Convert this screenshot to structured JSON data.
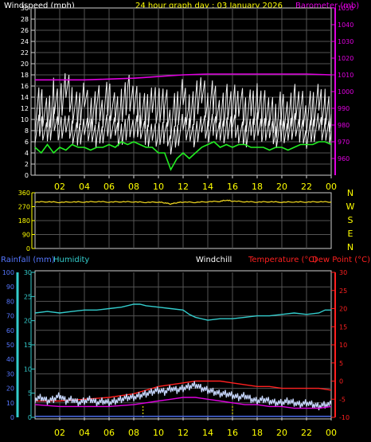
{
  "colors": {
    "background": "#000000",
    "frame": "#cfcfcf",
    "grid": "#555555",
    "white_text": "#ffffff",
    "yellow": "#ffff00",
    "magenta": "#e000e0",
    "green": "#22ee22",
    "cyan": "#33cccc",
    "blue_rain": "#5577ff",
    "red": "#ff2020",
    "light_blue": "#c8d8ff",
    "wind_white": "#f0f0f0",
    "dir_yellow": "#e8d020"
  },
  "chart_data": [
    {
      "type": "line",
      "name_id": "wind-baro",
      "title": "24 hour graph day : 03 January 2026",
      "ylabel_left": "Windspeed (mph)",
      "ylabel_right": "Barometer (mb)",
      "x_tick_labels": [
        "02",
        "04",
        "06",
        "08",
        "10",
        "12",
        "14",
        "16",
        "18",
        "20",
        "22",
        "00"
      ],
      "x_range_hours": [
        0,
        24
      ],
      "y_left_range": [
        0,
        30
      ],
      "y_left_ticks": [
        0,
        2,
        4,
        6,
        8,
        10,
        12,
        14,
        16,
        18,
        20,
        22,
        24,
        26,
        28,
        30
      ],
      "y_right_range": [
        950,
        1050
      ],
      "y_right_ticks": [
        960,
        970,
        980,
        990,
        1000,
        1010,
        1020,
        1030,
        1040,
        1050
      ],
      "grid": true,
      "series": [
        {
          "role": "gust",
          "color": "#f0f0f0",
          "x": [
            0,
            0.5,
            1,
            1.5,
            2,
            2.5,
            3,
            3.5,
            4,
            4.5,
            5,
            5.5,
            6,
            6.5,
            7,
            7.5,
            8,
            8.5,
            9,
            9.5,
            10,
            10.5,
            11,
            11.5,
            12,
            12.5,
            13,
            13.5,
            14,
            14.5,
            15,
            15.5,
            16,
            16.5,
            17,
            17.5,
            18,
            18.5,
            19,
            19.5,
            20,
            20.5,
            21,
            21.5,
            22,
            22.5,
            23,
            23.5,
            24
          ],
          "values": [
            11,
            13,
            10,
            14,
            12,
            16,
            13,
            11,
            15,
            10,
            13,
            12,
            14,
            11,
            12,
            15,
            13,
            12,
            11,
            14,
            12,
            13,
            10,
            12,
            14,
            11,
            13,
            15,
            12,
            14,
            11,
            13,
            12,
            14,
            11,
            12,
            13,
            12,
            11,
            10,
            12,
            11,
            13,
            12,
            11,
            12,
            13,
            12,
            11
          ]
        },
        {
          "role": "average",
          "color": "#f0f0f0",
          "x": [
            0,
            0.5,
            1,
            1.5,
            2,
            2.5,
            3,
            3.5,
            4,
            4.5,
            5,
            5.5,
            6,
            6.5,
            7,
            7.5,
            8,
            8.5,
            9,
            9.5,
            10,
            10.5,
            11,
            11.5,
            12,
            12.5,
            13,
            13.5,
            14,
            14.5,
            15,
            15.5,
            16,
            16.5,
            17,
            17.5,
            18,
            18.5,
            19,
            19.5,
            20,
            20.5,
            21,
            21.5,
            22,
            22.5,
            23,
            23.5,
            24
          ],
          "values": [
            8,
            9,
            7,
            10,
            8,
            9,
            8,
            7,
            9,
            8,
            7,
            8,
            9,
            8,
            7,
            9,
            8,
            9,
            7,
            8,
            7,
            8,
            6,
            7,
            9,
            8,
            7,
            9,
            8,
            9,
            8,
            8,
            9,
            8,
            7,
            8,
            9,
            8,
            8,
            7,
            8,
            8,
            9,
            8,
            7,
            8,
            9,
            8,
            8
          ]
        },
        {
          "role": "barometer",
          "color": "#e000e0",
          "axis": "right",
          "x": [
            0,
            2,
            4,
            6,
            8,
            9,
            10,
            12,
            14,
            16,
            18,
            20,
            22,
            24
          ],
          "values": [
            1007,
            1007,
            1007,
            1007.5,
            1008,
            1008.5,
            1009,
            1010,
            1010.5,
            1010.5,
            1010.5,
            1010.5,
            1010.5,
            1010
          ]
        },
        {
          "role": "temp-trace",
          "color": "#22ee22",
          "x": [
            0,
            0.5,
            1,
            1.5,
            2,
            2.5,
            3,
            3.5,
            4,
            4.5,
            5,
            5.5,
            6,
            6.5,
            7,
            7.5,
            8,
            8.5,
            9,
            9.5,
            10,
            10.5,
            11,
            11.5,
            12,
            12.5,
            13,
            13.5,
            14,
            14.5,
            15,
            15.5,
            16,
            16.5,
            17,
            17.5,
            18,
            18.5,
            19,
            19.5,
            20,
            20.5,
            21,
            21.5,
            22,
            22.5,
            23,
            23.5,
            24
          ],
          "values": [
            5,
            4,
            5.5,
            4,
            5,
            4.5,
            5.5,
            5,
            5,
            4.5,
            5,
            5,
            5.5,
            5,
            6,
            5.5,
            6,
            5.5,
            5,
            5,
            4,
            4,
            1,
            3,
            4,
            3,
            4,
            5,
            5.5,
            6,
            5,
            5.5,
            5,
            5.5,
            5.5,
            5,
            5,
            5,
            4.5,
            5,
            5,
            4.5,
            5,
            5.5,
            5.5,
            5.5,
            6,
            6,
            5.5
          ]
        }
      ]
    },
    {
      "type": "line",
      "name_id": "wind-direction",
      "y_range": [
        0,
        360
      ],
      "y_ticks": [
        0,
        90,
        180,
        270,
        360
      ],
      "compass_labels": [
        "N",
        "W",
        "S",
        "E",
        "N"
      ],
      "grid": true,
      "series": [
        {
          "role": "direction",
          "color": "#e8d020",
          "x": [
            0,
            1,
            2,
            3,
            4,
            5,
            6,
            7,
            8,
            9,
            10,
            10.5,
            11,
            11.5,
            12,
            13,
            14,
            15,
            15.5,
            16,
            17,
            18,
            19,
            20,
            21,
            22,
            23,
            24
          ],
          "values": [
            300,
            302,
            298,
            301,
            300,
            303,
            300,
            302,
            301,
            298,
            300,
            295,
            288,
            296,
            300,
            298,
            302,
            305,
            312,
            306,
            302,
            300,
            302,
            299,
            301,
            300,
            302,
            300
          ]
        }
      ]
    },
    {
      "type": "line",
      "name_id": "temp-humidity",
      "legend": [
        "Rainfall (mm)",
        "Humidity",
        "Windchill",
        "Temperature (°C)",
        "Dew Point (°C)"
      ],
      "x_tick_labels": [
        "02",
        "04",
        "06",
        "08",
        "10",
        "12",
        "14",
        "16",
        "18",
        "20",
        "22",
        "00"
      ],
      "y_left_outer_range": [
        0,
        100
      ],
      "y_left_outer_ticks": [
        0,
        10,
        20,
        30,
        40,
        50,
        60,
        70,
        80,
        90,
        100
      ],
      "y_left_inner_range": [
        0,
        30
      ],
      "y_left_inner_ticks": [
        0,
        5,
        10,
        15,
        20,
        25,
        30
      ],
      "y_right_range": [
        -10,
        30
      ],
      "y_right_ticks": [
        -10,
        -5,
        0,
        5,
        10,
        15,
        20,
        25,
        30
      ],
      "grid": true,
      "series": [
        {
          "role": "humidity",
          "color": "#33cccc",
          "axis": "left-outer",
          "x": [
            0,
            1,
            2,
            3,
            4,
            5,
            6,
            7,
            8,
            8.5,
            9,
            10,
            11,
            12,
            12.5,
            13,
            14,
            15,
            16,
            17,
            18,
            19,
            20,
            21,
            22,
            23,
            23.5,
            24
          ],
          "values": [
            72,
            73,
            72,
            73,
            74,
            74,
            75,
            76,
            78,
            78,
            77,
            76,
            75,
            74,
            71,
            69,
            67,
            68,
            68,
            69,
            70,
            70,
            71,
            72,
            71,
            72,
            74,
            74
          ]
        },
        {
          "role": "temperature",
          "color": "#ff2020",
          "axis": "right",
          "x": [
            0,
            2,
            4,
            6,
            8,
            9,
            10,
            11,
            12,
            13,
            14,
            15,
            16,
            17,
            18,
            19,
            20,
            21,
            22,
            23,
            24
          ],
          "values": [
            -5.5,
            -5.5,
            -5,
            -4.5,
            -3.5,
            -2.5,
            -1.5,
            -1,
            -0.5,
            0,
            0,
            0,
            -0.5,
            -1,
            -1.5,
            -1.5,
            -2,
            -2,
            -2,
            -2,
            -2.5
          ]
        },
        {
          "role": "windchill",
          "color": "#c8d8ff",
          "axis": "right",
          "x": [
            0,
            0.5,
            1,
            1.5,
            2,
            2.5,
            3,
            3.5,
            4,
            4.5,
            5,
            5.5,
            6,
            6.5,
            7,
            7.5,
            8,
            8.5,
            9,
            9.5,
            10,
            10.5,
            11,
            11.5,
            12,
            12.5,
            13,
            13.5,
            14,
            14.5,
            15,
            15.5,
            16,
            16.5,
            17,
            17.5,
            18,
            18.5,
            19,
            19.5,
            20,
            20.5,
            21,
            21.5,
            22,
            22.5,
            23,
            23.5,
            24
          ],
          "values": [
            -5,
            -4.5,
            -5.5,
            -5,
            -4,
            -5.5,
            -5,
            -6,
            -5.5,
            -5,
            -6,
            -5.5,
            -6,
            -5.5,
            -5,
            -4.5,
            -4.5,
            -4,
            -3.5,
            -3,
            -2.5,
            -3,
            -2,
            -2.5,
            -2,
            -1.5,
            -1,
            -2,
            -2.5,
            -3,
            -3.5,
            -3.5,
            -4,
            -4.5,
            -4,
            -5,
            -5.5,
            -5,
            -5.5,
            -6,
            -6,
            -5.5,
            -6,
            -6.5,
            -6,
            -6.5,
            -7,
            -6.5,
            -6.5
          ]
        },
        {
          "role": "dew-point",
          "color": "#e000e0",
          "axis": "right",
          "x": [
            0,
            2,
            4,
            6,
            8,
            9,
            10,
            11,
            12,
            13,
            14,
            15,
            16,
            17,
            18,
            19,
            20,
            21,
            22,
            23,
            24
          ],
          "values": [
            -6.5,
            -7,
            -7,
            -7,
            -6.5,
            -6,
            -5.5,
            -5,
            -4.5,
            -4.5,
            -5,
            -5.5,
            -6,
            -6.5,
            -6.5,
            -7,
            -7,
            -7.5,
            -7.5,
            -7.5,
            -7
          ]
        },
        {
          "role": "rainfall",
          "color": "#5577ff",
          "axis": "left-inner",
          "x": [
            0,
            24
          ],
          "values": [
            0.2,
            0.2
          ]
        }
      ],
      "markers_hours": [
        8.75,
        16
      ]
    }
  ]
}
